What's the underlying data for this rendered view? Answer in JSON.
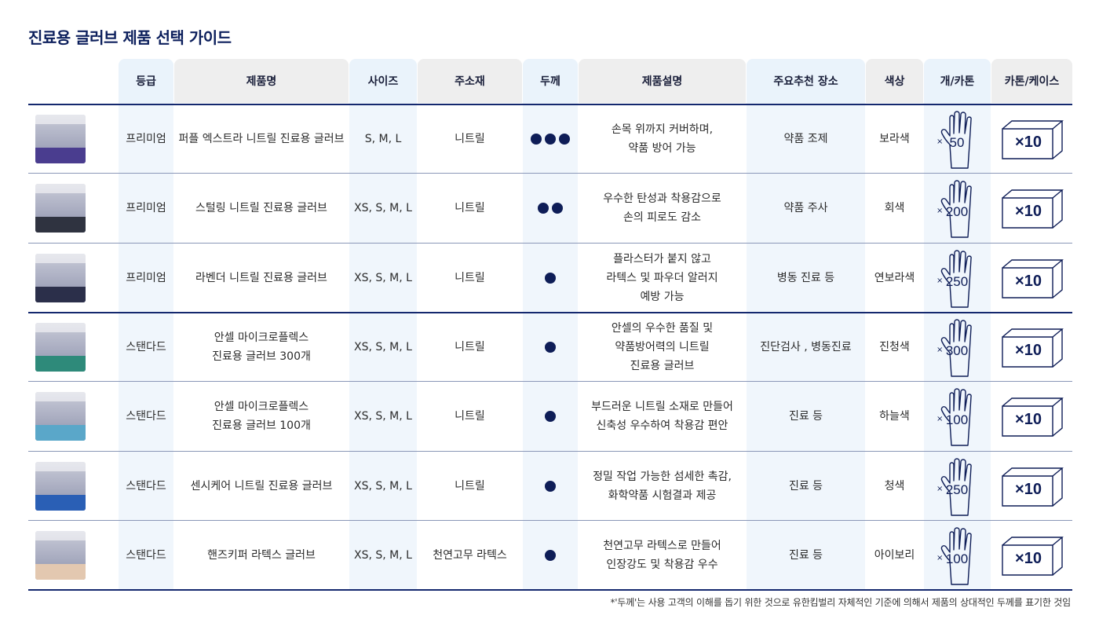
{
  "title": "진료용 글러브 제품 선택 가이드",
  "headers": {
    "grade": "등급",
    "name": "제품명",
    "size": "사이즈",
    "material": "주소재",
    "thickness": "두께",
    "description": "제품설명",
    "location": "주요추천 장소",
    "color": "색상",
    "per_carton": "개/카톤",
    "carton_case": "카톤/케이스"
  },
  "rows": [
    {
      "grade": "프리미엄",
      "name1": "퍼플 엑스트라 니트릴 진료용 글러브",
      "name2": "",
      "size": "S, M, L",
      "material": "니트릴",
      "thickness": 3,
      "desc1": "손목 위까지 커버하며,",
      "desc2": "약품 방어 가능",
      "desc3": "",
      "location": "약품 조제",
      "color": "보라색",
      "count_prefix": "×",
      "count": "50",
      "carton": "×10",
      "box_color": "#4a3d8f"
    },
    {
      "grade": "프리미엄",
      "name1": "스털링 니트릴 진료용 글러브",
      "name2": "",
      "size": "XS, S, M, L",
      "material": "니트릴",
      "thickness": 2,
      "desc1": "우수한 탄성과 착용감으로",
      "desc2": "손의 피로도 감소",
      "desc3": "",
      "location": "약품 주사",
      "color": "회색",
      "count_prefix": "×",
      "count": "200",
      "carton": "×10",
      "box_color": "#2f3340"
    },
    {
      "grade": "프리미엄",
      "name1": "라벤더 니트릴 진료용 글러브",
      "name2": "",
      "size": "XS, S, M, L",
      "material": "니트릴",
      "thickness": 1,
      "desc1": "플라스터가 붙지 않고",
      "desc2": "라텍스 및 파우더 알러지",
      "desc3": "예방 가능",
      "location": "병동 진료 등",
      "color": "연보라색",
      "count_prefix": "×",
      "count": "250",
      "carton": "×10",
      "box_color": "#2b2f4a"
    },
    {
      "grade": "스탠다드",
      "name1": "안셀 마이크로플렉스",
      "name2": "진료용 글러브 300개",
      "size": "XS, S, M, L",
      "material": "니트릴",
      "thickness": 1,
      "desc1": "안셀의 우수한 품질 및",
      "desc2": "약품방어력의 니트릴",
      "desc3": "진료용 글러브",
      "location": "진단검사 , 병동진료",
      "color": "진청색",
      "count_prefix": "×",
      "count": "300",
      "carton": "×10",
      "box_color": "#2e8a7a"
    },
    {
      "grade": "스탠다드",
      "name1": "안셀 마이크로플렉스",
      "name2": "진료용 글러브 100개",
      "size": "XS, S, M, L",
      "material": "니트릴",
      "thickness": 1,
      "desc1": "부드러운 니트릴 소재로 만들어",
      "desc2": "신축성 우수하여 착용감 편안",
      "desc3": "",
      "location": "진료 등",
      "color": "하늘색",
      "count_prefix": "×",
      "count": "100",
      "carton": "×10",
      "box_color": "#5aa7c9"
    },
    {
      "grade": "스탠다드",
      "name1": "센시케어 니트릴 진료용 글러브",
      "name2": "",
      "size": "XS, S, M, L",
      "material": "니트릴",
      "thickness": 1,
      "desc1": "정밀 작업 가능한 섬세한 촉감,",
      "desc2": "화학약품 시험결과 제공",
      "desc3": "",
      "location": "진료 등",
      "color": "청색",
      "count_prefix": "×",
      "count": "250",
      "carton": "×10",
      "box_color": "#2a5fb5"
    },
    {
      "grade": "스탠다드",
      "name1": "핸즈키퍼 라텍스 글러브",
      "name2": "",
      "size": "XS, S, M, L",
      "material": "천연고무 라텍스",
      "thickness": 1,
      "desc1": "천연고무 라텍스로 만들어",
      "desc2": "인장강도 및 착용감 우수",
      "desc3": "",
      "location": "진료 등",
      "color": "아이보리",
      "count_prefix": "×",
      "count": "100",
      "carton": "×10",
      "box_color": "#e3c8b0"
    }
  ],
  "footnote": "*'두께'는 사용 고객의 이해를 돕기 위한 것으로 유한킴벌리 자체적인 기준에 의해서 제품의 상대적인 두께를 표기한 것임",
  "icons": {
    "product": "glove-box-image",
    "glove": "glove-icon",
    "carton": "carton-box-icon",
    "dot": "thickness-dot"
  }
}
